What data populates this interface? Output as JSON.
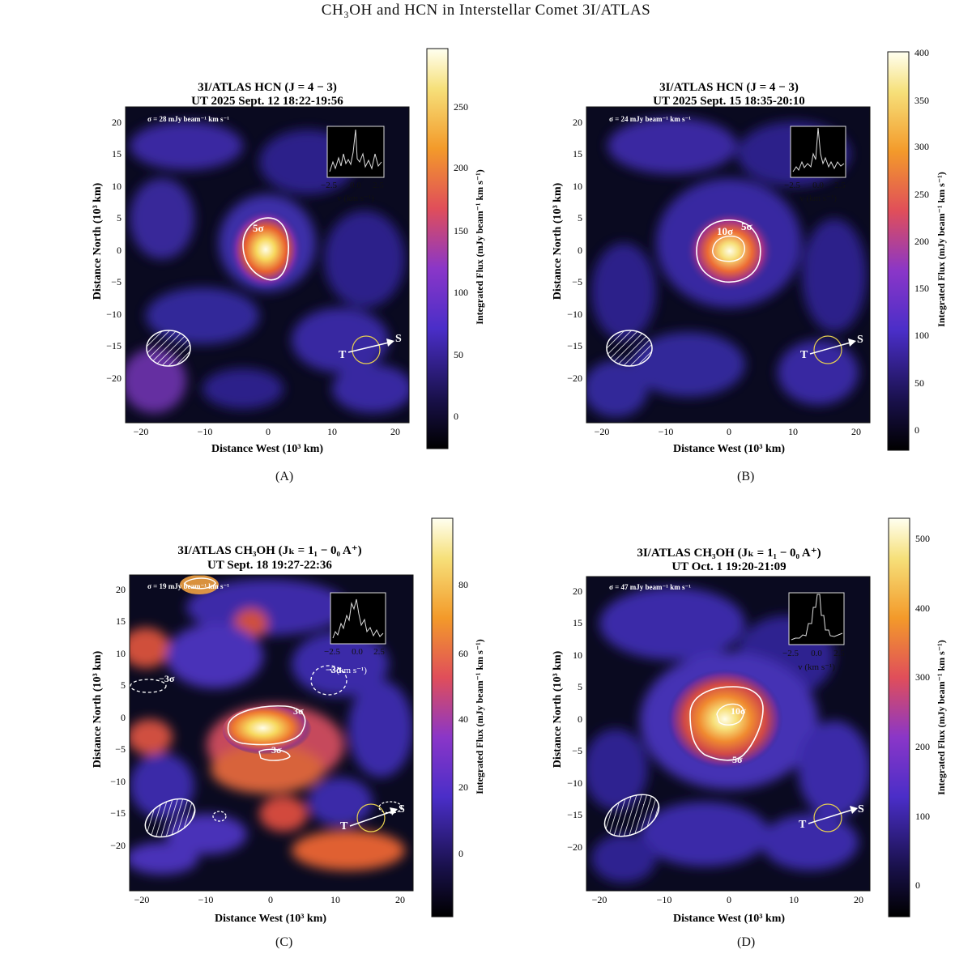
{
  "header": {
    "text": "CH₃OH and HCN in Interstellar Comet 3I/ATLAS"
  },
  "panels": [
    {
      "id": "A",
      "caption": "(A)",
      "title1": "3I/ATLAS HCN (J = 4 − 3)",
      "title2": "UT 2025 Sept. 12 18:22-19:56",
      "sigma_label": "σ = 28 mJy beam⁻¹ km s⁻¹",
      "xlabel": "Distance West (10³ km)",
      "ylabel": "Distance North (10³ km)",
      "cbar_label": "Integrated Flux (mJy beam⁻¹ km s⁻¹)",
      "cbar_ticks": [
        "250",
        "200",
        "150",
        "100",
        "50",
        "0"
      ],
      "xticks": [
        "−20",
        "−10",
        "0",
        "10",
        "20"
      ],
      "yticks": [
        "20",
        "15",
        "10",
        "5",
        "0",
        "−5",
        "−10",
        "−15",
        "−20"
      ],
      "inset_ticks": [
        "−2.5",
        "0.0",
        "2.5"
      ],
      "inset_label": "v (km s⁻¹)",
      "contour_labels": [
        "5σ"
      ],
      "dir_T": "T",
      "dir_S": "S"
    },
    {
      "id": "B",
      "caption": "(B)",
      "title1": "3I/ATLAS HCN (J = 4 − 3)",
      "title2": "UT 2025 Sept. 15 18:35-20:10",
      "sigma_label": "σ = 24 mJy beam⁻¹ km s⁻¹",
      "xlabel": "Distance West (10³ km)",
      "ylabel": "Distance North (10³ km)",
      "cbar_label": "Integrated Flux (mJy beam⁻¹ km s⁻¹)",
      "cbar_ticks": [
        "400",
        "350",
        "300",
        "250",
        "200",
        "150",
        "100",
        "50",
        "0"
      ],
      "xticks": [
        "−20",
        "−10",
        "0",
        "10",
        "20"
      ],
      "yticks": [
        "20",
        "15",
        "10",
        "5",
        "0",
        "−5",
        "−10",
        "−15",
        "−20"
      ],
      "inset_ticks": [
        "−2.5",
        "0.0",
        "2.5"
      ],
      "inset_label": "v (km s⁻¹)",
      "contour_labels": [
        "10σ",
        "5σ"
      ],
      "dir_T": "T",
      "dir_S": "S"
    },
    {
      "id": "C",
      "caption": "(C)",
      "title1": "3I/ATLAS CH₃OH (Jₖ = 1₁ − 0₀ A⁺)",
      "title2": "UT Sept. 18 19:27-22:36",
      "sigma_label": "σ = 19 mJy beam⁻¹ km s⁻¹",
      "xlabel": "Distance West (10³ km)",
      "ylabel": "Distance North (10³ km)",
      "cbar_label": "Integrated Flux (mJy beam⁻¹ km s⁻¹)",
      "cbar_ticks": [
        "80",
        "60",
        "40",
        "20",
        "0"
      ],
      "xticks": [
        "−20",
        "−10",
        "0",
        "10",
        "20"
      ],
      "yticks": [
        "20",
        "15",
        "10",
        "5",
        "0",
        "−5",
        "−10",
        "−15",
        "−20"
      ],
      "inset_ticks": [
        "−2.5",
        "0.0",
        "2.5"
      ],
      "inset_label": "v (km s⁻¹)",
      "contour_labels": [
        "3σ",
        "3σ",
        "−3σ",
        "−3σ"
      ],
      "dir_T": "T",
      "dir_S": "S"
    },
    {
      "id": "D",
      "caption": "(D)",
      "title1": "3I/ATLAS CH₃OH (Jₖ = 1₁ − 0₀ A⁺)",
      "title2": "UT Oct. 1 19:20-21:09",
      "sigma_label": "σ = 47 mJy beam⁻¹ km s⁻¹",
      "xlabel": "Distance West (10³ km)",
      "ylabel": "Distance North (10³ km)",
      "cbar_label": "Integrated Flux (mJy beam⁻¹ km s⁻¹)",
      "cbar_ticks": [
        "500",
        "400",
        "300",
        "200",
        "100",
        "0"
      ],
      "xticks": [
        "−20",
        "−10",
        "0",
        "10",
        "20"
      ],
      "yticks": [
        "20",
        "15",
        "10",
        "5",
        "0",
        "−5",
        "−10",
        "−15",
        "−20"
      ],
      "inset_ticks": [
        "−2.5",
        "0.0",
        "2.5"
      ],
      "inset_label": "v (km s⁻¹)",
      "contour_labels": [
        "10σ",
        "5σ"
      ],
      "dir_T": "T",
      "dir_S": "S"
    }
  ],
  "colors": {
    "map_bg": "#080816",
    "accent": "#f5d36a"
  }
}
